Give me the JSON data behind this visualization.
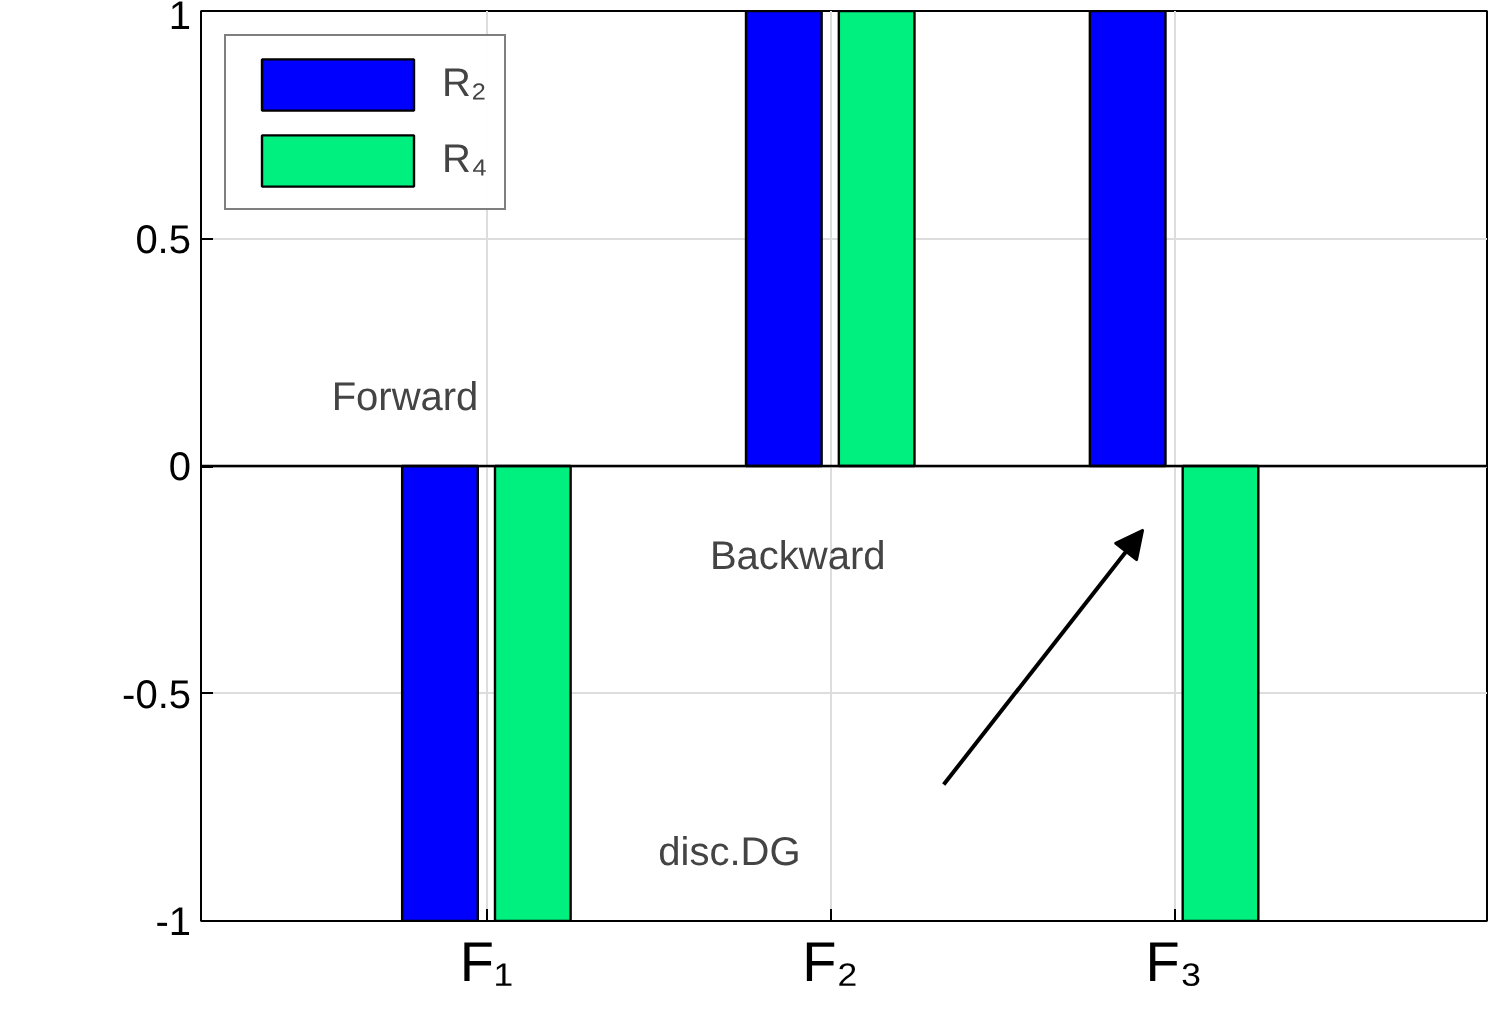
{
  "chart_data": {
    "type": "bar",
    "categories": [
      "F₁",
      "F₂",
      "F₃"
    ],
    "series": [
      {
        "name": "R₂",
        "color": "#0000ff",
        "values": [
          -1,
          1,
          1
        ]
      },
      {
        "name": "R₄",
        "color": "#00f080",
        "values": [
          -1,
          1,
          -1
        ]
      }
    ],
    "ylim": [
      -1,
      1
    ],
    "yticks": [
      -1,
      -0.5,
      0,
      0.5,
      1
    ],
    "grid": true,
    "legend": "top left",
    "annotations": [
      "Forward",
      "Backward",
      "disc.DG"
    ]
  }
}
